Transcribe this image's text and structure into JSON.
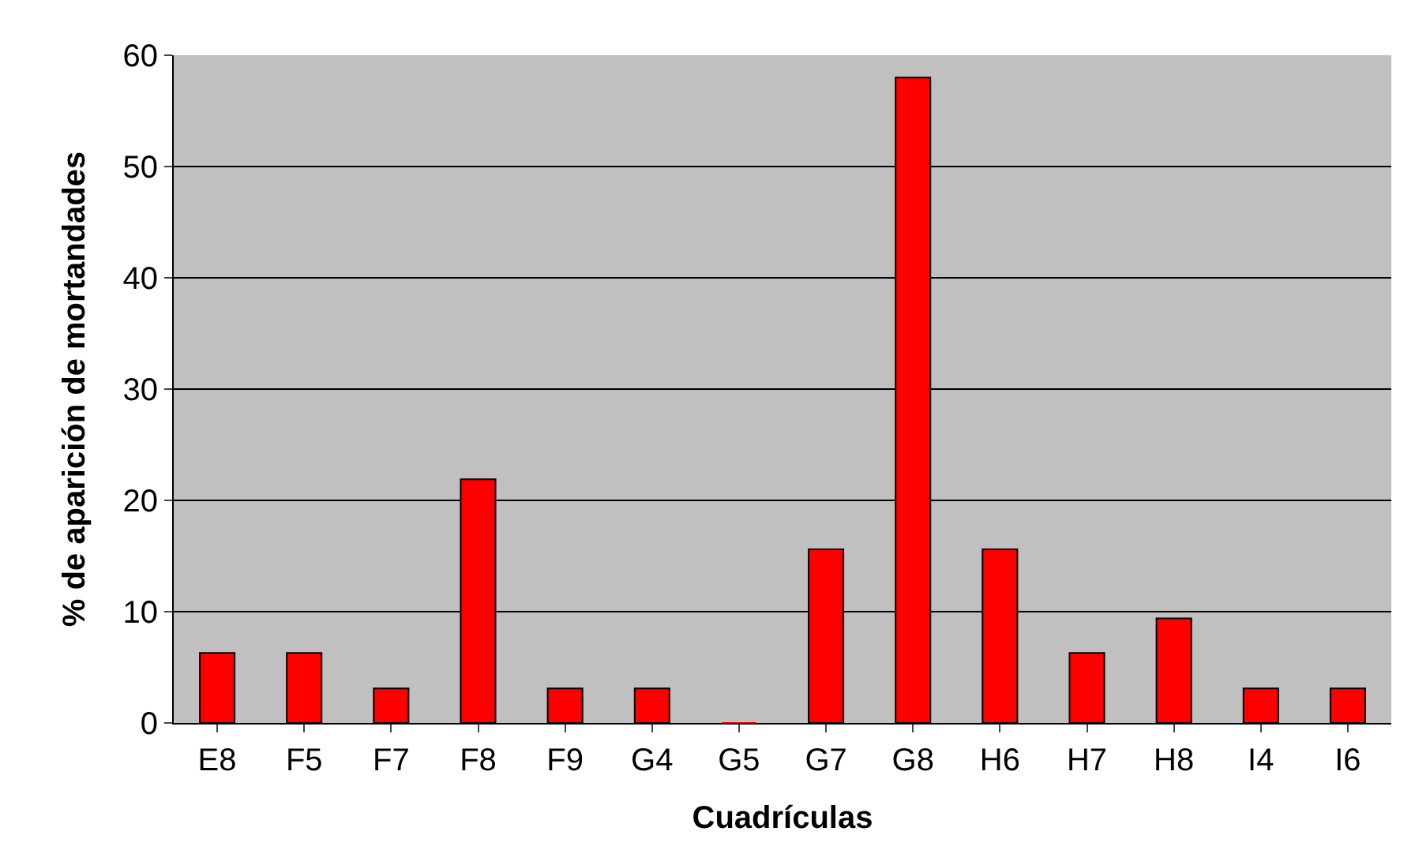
{
  "chart_data": {
    "type": "bar",
    "xlabel": "Cuadrículas",
    "ylabel": "% de aparición de mortandades",
    "categories": [
      "E8",
      "F5",
      "F7",
      "F8",
      "F9",
      "G4",
      "G5",
      "G7",
      "G8",
      "H6",
      "H7",
      "H8",
      "I4",
      "I6"
    ],
    "values": [
      6.3,
      6.3,
      3.1,
      21.9,
      3.1,
      3.1,
      0,
      15.6,
      58,
      15.6,
      6.3,
      9.4,
      3.1,
      3.1
    ],
    "color": "#ff0000",
    "ylim": [
      0,
      60
    ],
    "yticks": [
      0,
      10,
      20,
      30,
      40,
      50,
      60
    ],
    "grid": "y"
  }
}
